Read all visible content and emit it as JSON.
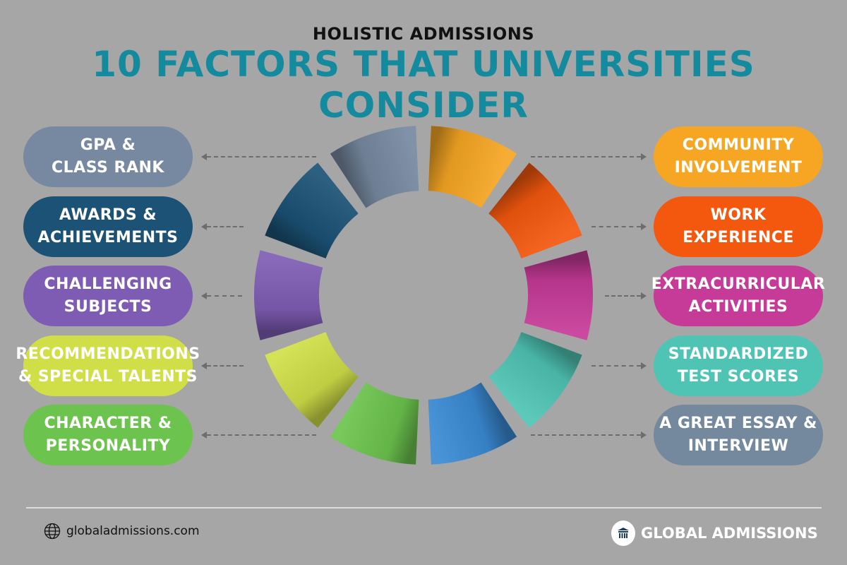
{
  "header": {
    "subtitle": "HOLISTIC ADMISSIONS",
    "title": "10 FACTORS THAT UNIVERSITIES CONSIDER"
  },
  "left_factors": [
    {
      "label": "GPA &\nCLASS RANK",
      "color": "#7689a0"
    },
    {
      "label": "AWARDS &\nACHIEVEMENTS",
      "color": "#1b5275"
    },
    {
      "label": "CHALLENGING\nSUBJECTS",
      "color": "#7e5cb4"
    },
    {
      "label": "RECOMMENDATIONS\n& SPECIAL TALENTS",
      "color": "#d0df48"
    },
    {
      "label": "CHARACTER &\nPERSONALITY",
      "color": "#6cc44e"
    }
  ],
  "right_factors": [
    {
      "label": "COMMUNITY\nINVOLVEMENT",
      "color": "#f6a623"
    },
    {
      "label": "WORK\nEXPERIENCE",
      "color": "#f4580f"
    },
    {
      "label": "EXTRACURRICULAR\nACTIVITIES",
      "color": "#c63a98"
    },
    {
      "label": "STANDARDIZED\nTEST SCORES",
      "color": "#4fc4b4"
    },
    {
      "label": "A GREAT ESSAY &\nINTERVIEW",
      "color": "#74889e"
    }
  ],
  "ring_colors": [
    "#f6a623",
    "#f4580f",
    "#c63a98",
    "#4fc4b4",
    "#3a8ad4",
    "#6cc44e",
    "#d0df48",
    "#7e5cb4",
    "#1b5275",
    "#7689a0"
  ],
  "footer": {
    "website": "globaladmissions.com",
    "brand": "GLOBAL ADMISSIONS"
  }
}
